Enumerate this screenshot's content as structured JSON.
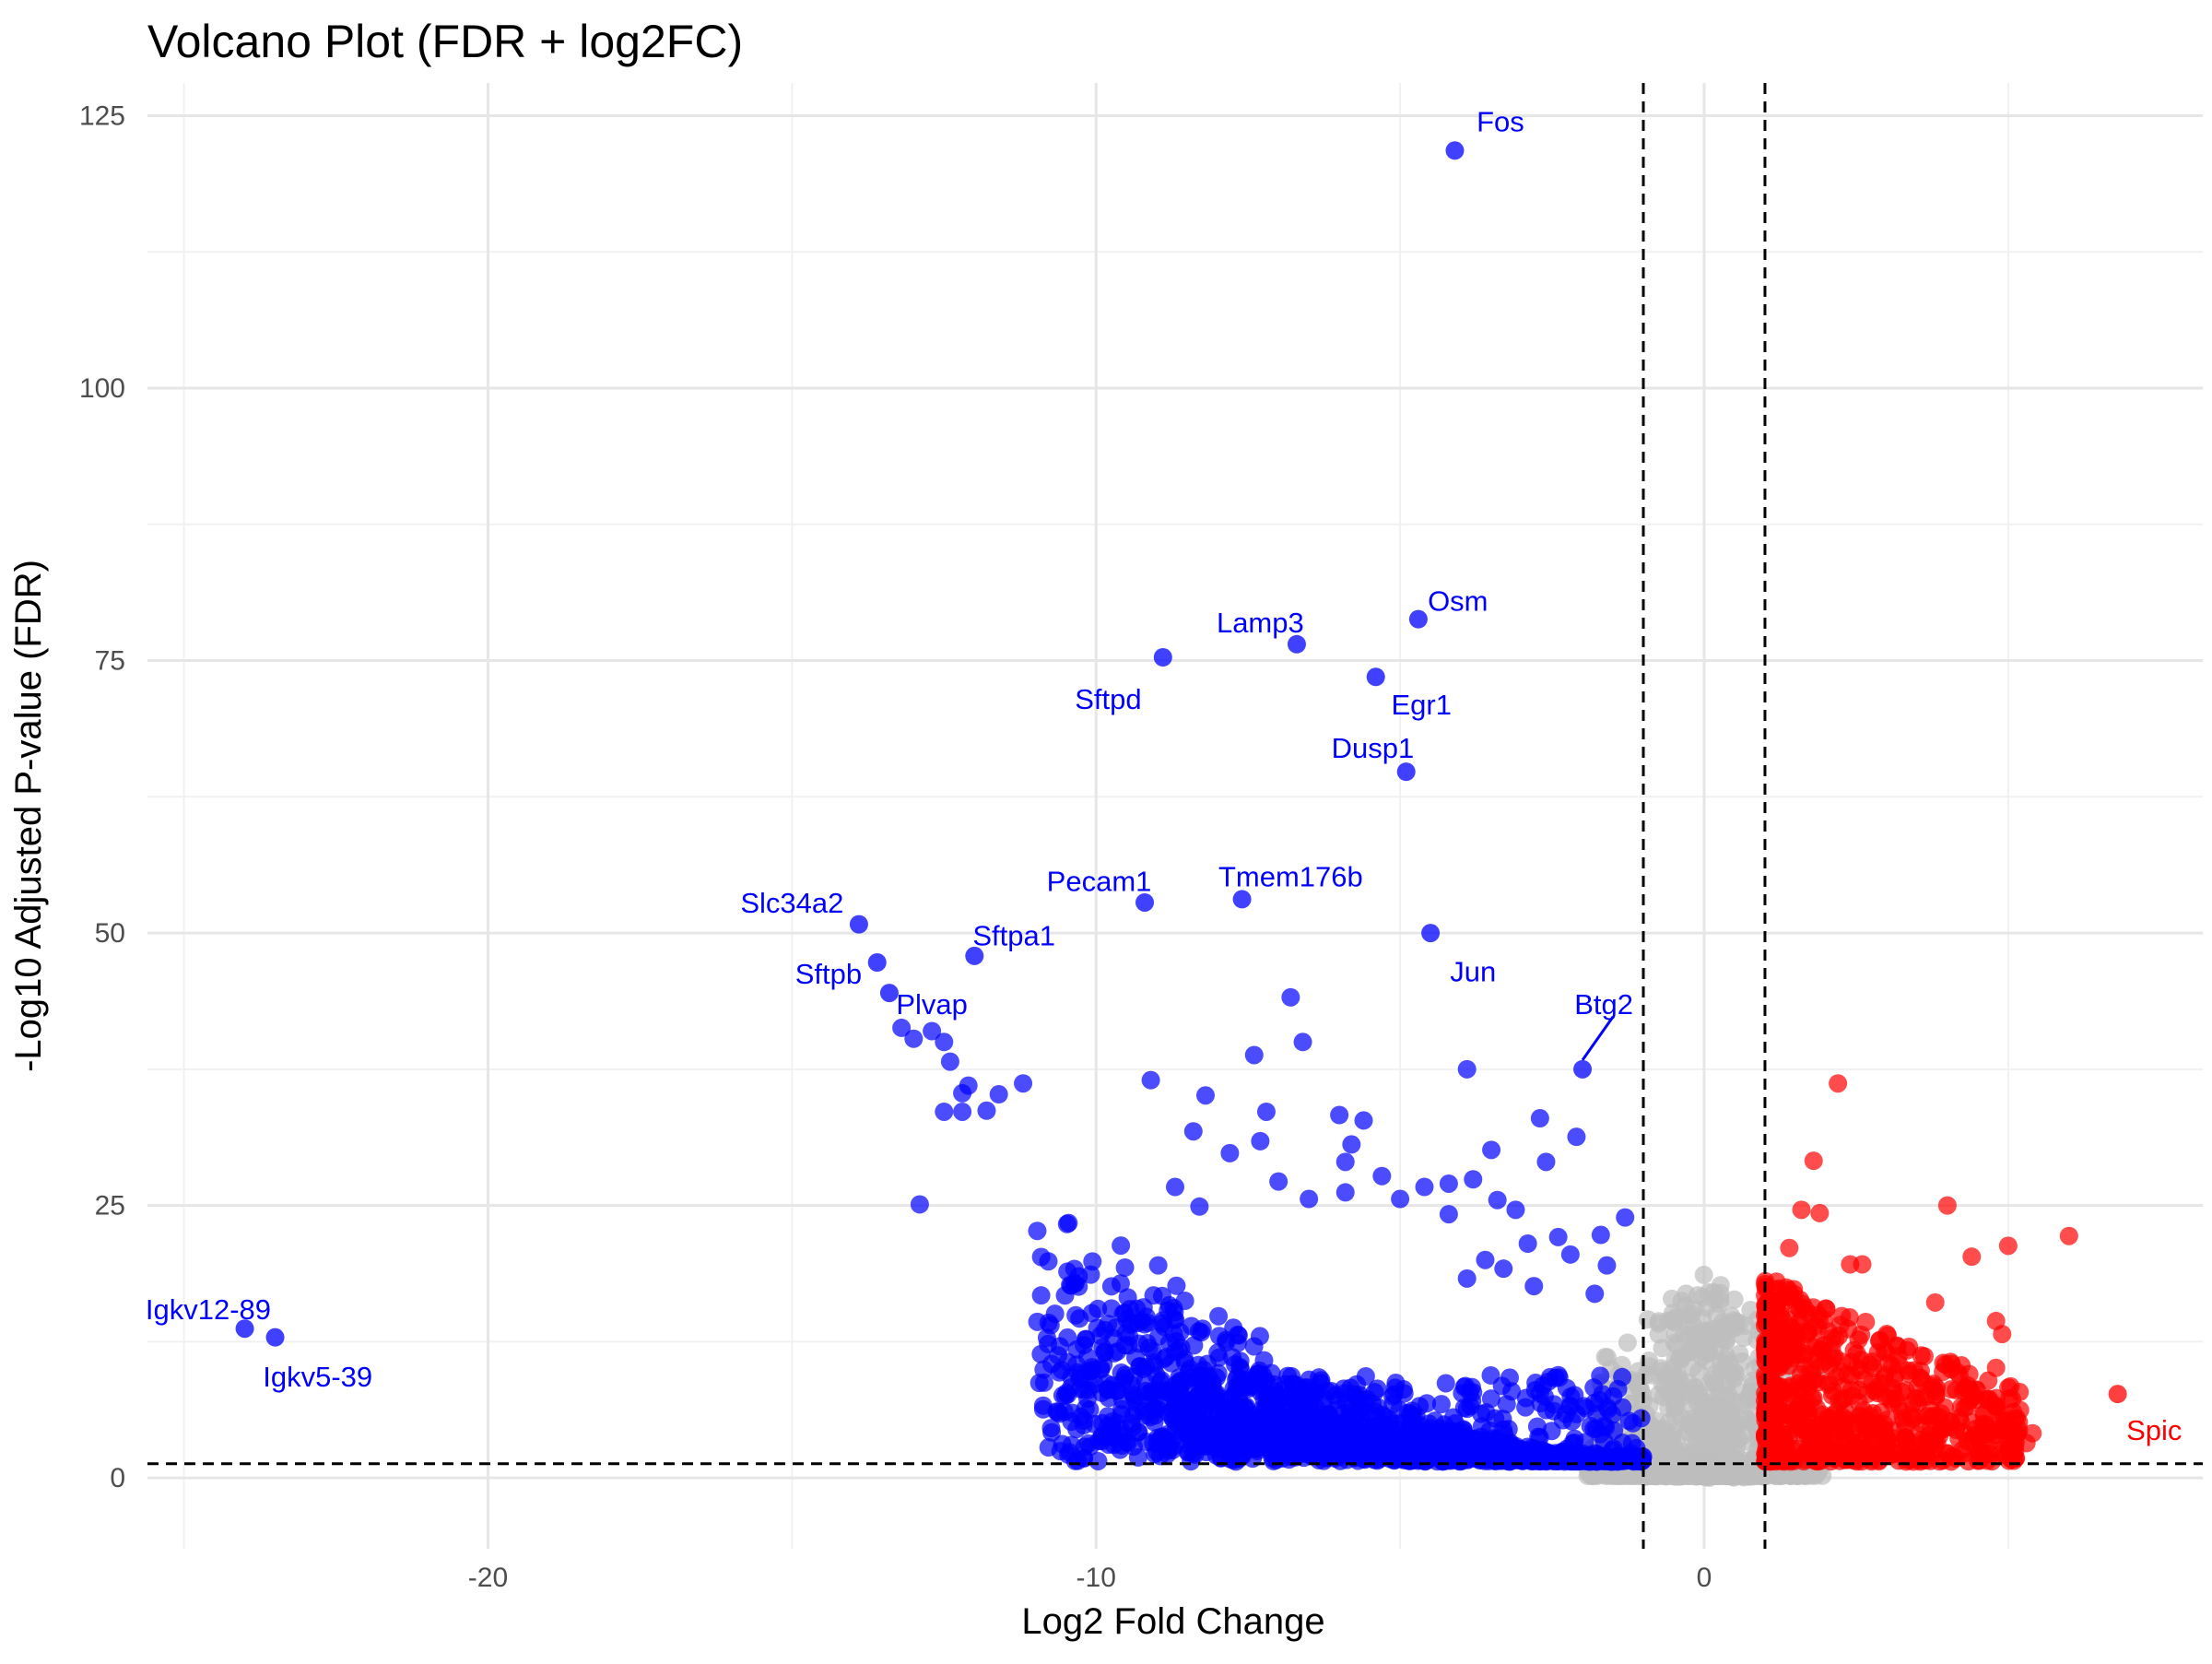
{
  "chart_data": {
    "type": "scatter",
    "title": "Volcano Plot (FDR + log2FC)",
    "xlabel": "Log2 Fold Change",
    "ylabel": "-Log10 Adjusted P-value (FDR)",
    "xlim": [
      -25.6,
      8.2
    ],
    "ylim": [
      -6.5,
      128
    ],
    "x_ticks": [
      -20,
      -10,
      0
    ],
    "x_tick_labels": [
      "-20",
      "-10",
      "0"
    ],
    "y_ticks": [
      0,
      25,
      50,
      75,
      100,
      125
    ],
    "y_tick_labels": [
      "0",
      "25",
      "50",
      "75",
      "100",
      "125"
    ],
    "grid": true,
    "thresholds": {
      "log2fc": [
        -1,
        1
      ],
      "neg_log10_fdr": 1.3
    },
    "colors": {
      "down": "#0000ff",
      "up": "#ff0000",
      "ns": "#bebebe"
    },
    "labeled_points": [
      {
        "label": "Fos",
        "x": -4.1,
        "y": 121.8,
        "group": "down",
        "lx": -3.35,
        "ly": 124.5,
        "anchor": "middle"
      },
      {
        "label": "Osm",
        "x": -4.7,
        "y": 78.8,
        "group": "down",
        "lx": -4.05,
        "ly": 80.5,
        "anchor": "middle"
      },
      {
        "label": "Lamp3",
        "x": -6.7,
        "y": 76.5,
        "group": "down",
        "lx": -7.3,
        "ly": 78.5,
        "anchor": "middle"
      },
      {
        "label": "Sftpd",
        "x": -8.9,
        "y": 75.3,
        "group": "down",
        "lx": -9.8,
        "ly": 71.5,
        "anchor": "middle"
      },
      {
        "label": "Egr1",
        "x": -5.4,
        "y": 73.5,
        "group": "down",
        "lx": -4.65,
        "ly": 71.0,
        "anchor": "middle"
      },
      {
        "label": "Dusp1",
        "x": -4.9,
        "y": 64.8,
        "group": "down",
        "lx": -5.45,
        "ly": 67.0,
        "anchor": "middle"
      },
      {
        "label": "Tmem176b",
        "x": -7.6,
        "y": 53.1,
        "group": "down",
        "lx": -6.8,
        "ly": 55.2,
        "anchor": "middle"
      },
      {
        "label": "Pecam1",
        "x": -9.2,
        "y": 52.8,
        "group": "down",
        "lx": -9.95,
        "ly": 54.8,
        "anchor": "middle"
      },
      {
        "label": "Slc34a2",
        "x": -13.9,
        "y": 50.8,
        "group": "down",
        "lx": -15.0,
        "ly": 52.8,
        "anchor": "middle"
      },
      {
        "label": "Jun",
        "x": -4.5,
        "y": 50.0,
        "group": "down",
        "lx": -3.8,
        "ly": 46.5,
        "anchor": "middle"
      },
      {
        "label": "Sftpa1",
        "x": -12.0,
        "y": 47.9,
        "group": "down",
        "lx": -11.35,
        "ly": 49.8,
        "anchor": "middle"
      },
      {
        "label": "Sftpb",
        "x": -13.6,
        "y": 47.3,
        "group": "down",
        "lx": -14.4,
        "ly": 46.3,
        "anchor": "middle"
      },
      {
        "label": "Plvap",
        "x": -13.4,
        "y": 44.5,
        "group": "down",
        "lx": -12.7,
        "ly": 43.5,
        "anchor": "middle"
      },
      {
        "label": "Btg2",
        "x": -2.0,
        "y": 37.5,
        "group": "down",
        "lx": -1.65,
        "ly": 43.5,
        "anchor": "middle",
        "leader": true
      },
      {
        "label": "Igkv12-89",
        "x": -24.0,
        "y": 13.7,
        "group": "down",
        "lx": -24.6,
        "ly": 15.5,
        "anchor": "middle"
      },
      {
        "label": "Igkv5-39",
        "x": -23.5,
        "y": 12.9,
        "group": "down",
        "lx": -22.8,
        "ly": 9.3,
        "anchor": "middle"
      },
      {
        "label": "Spic",
        "x": 6.8,
        "y": 7.7,
        "group": "up",
        "lx": 7.4,
        "ly": 4.4,
        "anchor": "middle"
      }
    ],
    "down_points": [
      [
        -9.1,
        36.5
      ],
      [
        -8.4,
        31.8
      ],
      [
        -8.2,
        35.1
      ],
      [
        -7.8,
        29.8
      ],
      [
        -7.4,
        38.8
      ],
      [
        -7.2,
        33.6
      ],
      [
        -7.3,
        30.9
      ],
      [
        -6.8,
        44.1
      ],
      [
        -6.6,
        40.0
      ],
      [
        -6.0,
        33.3
      ],
      [
        -5.8,
        30.6
      ],
      [
        -5.9,
        29.0
      ],
      [
        -5.6,
        32.8
      ],
      [
        -5.3,
        27.7
      ],
      [
        -4.6,
        26.7
      ],
      [
        -4.2,
        24.2
      ],
      [
        -3.9,
        37.5
      ],
      [
        -3.8,
        27.4
      ],
      [
        -3.5,
        30.1
      ],
      [
        -3.1,
        24.6
      ],
      [
        -2.7,
        33.0
      ],
      [
        -2.6,
        29.0
      ],
      [
        -2.1,
        31.3
      ],
      [
        -2.4,
        22.1
      ],
      [
        -1.7,
        22.3
      ],
      [
        -1.3,
        23.9
      ],
      [
        -8.7,
        26.7
      ],
      [
        -8.3,
        24.9
      ],
      [
        -7.0,
        27.2
      ],
      [
        -6.5,
        25.6
      ],
      [
        -5.9,
        26.2
      ],
      [
        -5.0,
        25.6
      ],
      [
        -4.2,
        27.0
      ],
      [
        -3.4,
        25.5
      ],
      [
        -2.9,
        21.5
      ],
      [
        -11.2,
        36.2
      ],
      [
        -12.2,
        35.3
      ],
      [
        -11.6,
        35.2
      ],
      [
        -10.6,
        5.9
      ],
      [
        -9.0,
        2.4
      ],
      [
        -8.5,
        3.1
      ],
      [
        -7.7,
        1.5
      ],
      [
        -7.1,
        1.8
      ],
      [
        -12.9,
        25.1
      ],
      [
        -12.7,
        41.0
      ],
      [
        -13.0,
        40.3
      ],
      [
        -13.2,
        41.3
      ],
      [
        -12.5,
        40.0
      ],
      [
        -12.4,
        38.2
      ],
      [
        -12.1,
        36.0
      ],
      [
        -11.8,
        33.7
      ],
      [
        -12.2,
        33.6
      ],
      [
        -12.5,
        33.6
      ],
      [
        -3.6,
        20.0
      ],
      [
        -3.9,
        18.3
      ],
      [
        -3.3,
        19.2
      ],
      [
        -2.8,
        17.6
      ],
      [
        -2.2,
        20.5
      ],
      [
        -1.8,
        16.9
      ],
      [
        -1.6,
        19.5
      ]
    ],
    "up_points": [
      [
        1.8,
        29.1
      ],
      [
        2.2,
        36.2
      ],
      [
        4.0,
        25.0
      ],
      [
        5.0,
        21.3
      ],
      [
        6.0,
        22.2
      ],
      [
        4.4,
        20.3
      ],
      [
        2.4,
        19.6
      ],
      [
        2.6,
        19.6
      ],
      [
        1.6,
        24.6
      ],
      [
        1.9,
        24.3
      ],
      [
        1.4,
        21.1
      ],
      [
        3.8,
        16.1
      ],
      [
        4.8,
        14.4
      ],
      [
        4.9,
        13.2
      ],
      [
        4.8,
        10.1
      ],
      [
        3.0,
        11.5
      ],
      [
        2.8,
        8.0
      ],
      [
        3.4,
        5.7
      ],
      [
        4.2,
        5.5
      ],
      [
        4.9,
        4.4
      ],
      [
        5.3,
        3.2
      ],
      [
        5.4,
        4.1
      ],
      [
        5.0,
        2.7
      ],
      [
        3.6,
        3.2
      ],
      [
        2.6,
        5.2
      ],
      [
        1.3,
        16.6
      ],
      [
        1.7,
        13.5
      ],
      [
        2.1,
        11.8
      ]
    ]
  }
}
